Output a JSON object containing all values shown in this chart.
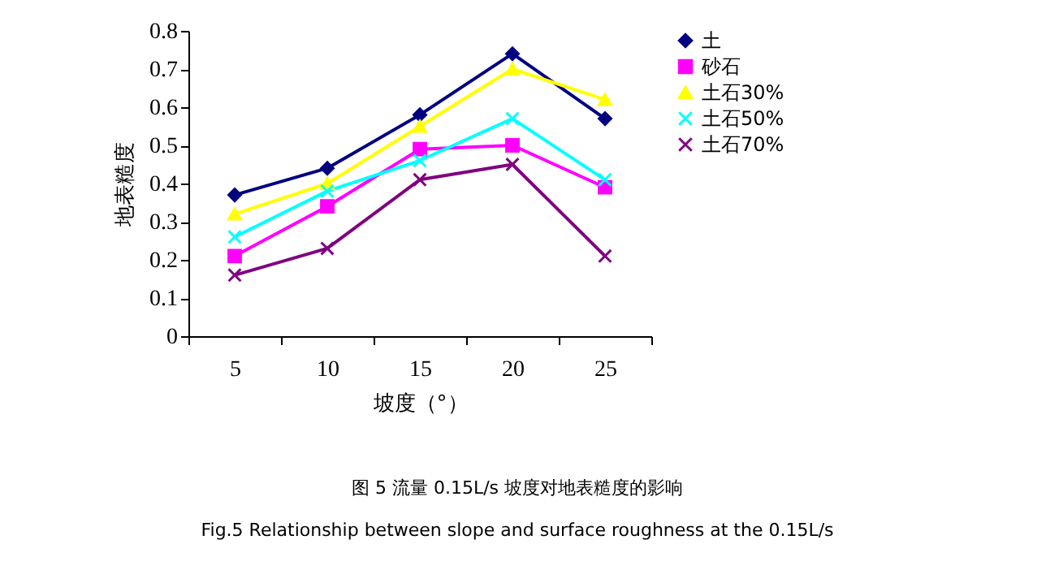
{
  "chart_data": {
    "type": "line",
    "xlabel": "坡度（°）",
    "ylabel": "地表糙度",
    "annotations": [
      "图 5   流量 0.15L/s 坡度对地表糙度的影响",
      "Fig.5    Relationship between slope and surface roughness at the 0.15L/s"
    ],
    "categories": [
      "5",
      "10",
      "15",
      "20",
      "25"
    ],
    "series": [
      {
        "name": "土",
        "color": "#000080",
        "marker": "diamond",
        "values": [
          0.37,
          0.44,
          0.58,
          0.74,
          0.57
        ]
      },
      {
        "name": "砂石",
        "color": "#ff00ff",
        "marker": "square",
        "values": [
          0.21,
          0.34,
          0.49,
          0.5,
          0.39
        ]
      },
      {
        "name": "土石30%",
        "color": "#ffff00",
        "marker": "triangle",
        "values": [
          0.32,
          0.4,
          0.55,
          0.7,
          0.62
        ]
      },
      {
        "name": "土石50%",
        "color": "#00ffff",
        "marker": "cross",
        "values": [
          0.26,
          0.38,
          0.46,
          0.57,
          0.41
        ]
      },
      {
        "name": "土石70%",
        "color": "#800080",
        "marker": "cross",
        "values": [
          0.16,
          0.23,
          0.41,
          0.45,
          0.21
        ]
      }
    ],
    "ylim": [
      0,
      0.8
    ],
    "yticks": [
      0,
      0.1,
      0.2,
      0.3,
      0.4,
      0.5,
      0.6,
      0.7,
      0.8
    ],
    "grid": false,
    "legend": "right"
  }
}
